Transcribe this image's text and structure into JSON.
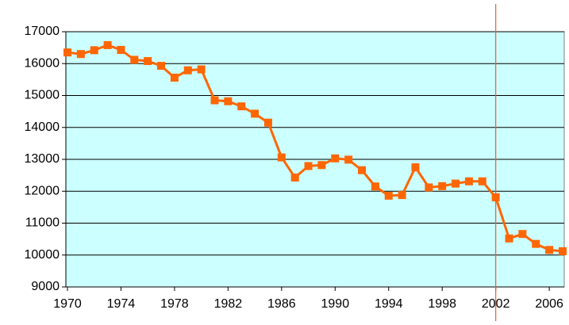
{
  "chart_data": {
    "type": "line",
    "x": [
      1970,
      1971,
      1972,
      1973,
      1974,
      1975,
      1976,
      1977,
      1978,
      1979,
      1980,
      1981,
      1982,
      1983,
      1984,
      1985,
      1986,
      1987,
      1988,
      1989,
      1990,
      1991,
      1992,
      1993,
      1994,
      1995,
      1996,
      1997,
      1998,
      1999,
      2000,
      2001,
      2002,
      2003,
      2004,
      2005,
      2006,
      2007
    ],
    "series": [
      {
        "color": "#ff6600",
        "values": [
          16350,
          16300,
          16420,
          16580,
          16430,
          16120,
          16080,
          15930,
          15560,
          15790,
          15820,
          14850,
          14820,
          14660,
          14430,
          14150,
          13060,
          12430,
          12790,
          12820,
          13030,
          12990,
          12660,
          12150,
          11860,
          11880,
          12750,
          12120,
          12160,
          12240,
          12310,
          12310,
          11810,
          10520,
          10660,
          10350,
          10160,
          10120
        ]
      }
    ],
    "xlim": [
      1970,
      2007
    ],
    "xticks": [
      1970,
      1974,
      1978,
      1982,
      1986,
      1990,
      1994,
      1998,
      2002,
      2006
    ],
    "ylim": [
      9000,
      17000
    ],
    "yticks": [
      9000,
      10000,
      11000,
      12000,
      13000,
      14000,
      15000,
      16000,
      17000
    ],
    "grid": true,
    "plot_background": "#ccffff",
    "reference_line_x": 2002,
    "reference_line_color": "#e8602c"
  }
}
